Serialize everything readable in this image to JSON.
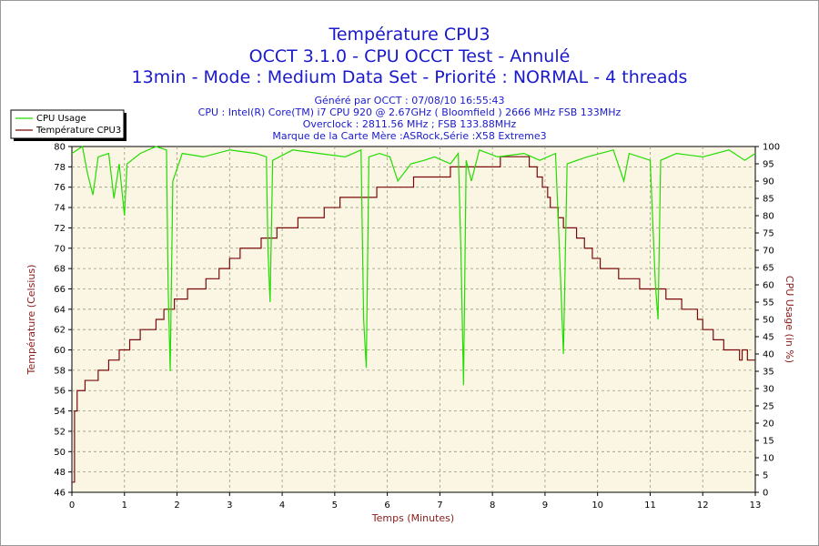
{
  "titles": {
    "line1": "Température CPU3",
    "line2": "OCCT 3.1.0 - CPU OCCT Test - Annulé",
    "line3": "13min - Mode : Medium Data Set - Priorité : NORMAL - 4 threads"
  },
  "info": {
    "generated": "Généré par OCCT : 07/08/10 16:55:43",
    "cpu": "CPU : Intel(R) Core(TM) i7 CPU 920 @ 2.67GHz ( Bloomfield ) 2666 MHz FSB 133MHz",
    "overclock": "Overclock : 2811.56 MHz ; FSB 133.88MHz",
    "board": "Marque de la Carte Mère :ASRock,Série :X58 Extreme3"
  },
  "colors": {
    "plot_bg": "#fbf5e4",
    "cpu_usage": "#22dd00",
    "temperature": "#7a0a0a",
    "grid": "#9a9a7a",
    "title": "#1a1acc"
  },
  "chart_data": {
    "type": "line",
    "xlabel": "Temps (Minutes)",
    "ylabel": "Température (Celsius)",
    "y2label": "CPU Usage (in %)",
    "xlim": [
      0,
      13
    ],
    "ylim": [
      46,
      80
    ],
    "y2lim": [
      0,
      100
    ],
    "x_ticks": [
      0,
      1,
      2,
      3,
      4,
      5,
      6,
      7,
      8,
      9,
      10,
      11,
      12,
      13
    ],
    "y_ticks": [
      46,
      48,
      50,
      52,
      54,
      56,
      58,
      60,
      62,
      64,
      66,
      68,
      70,
      72,
      74,
      76,
      78,
      80
    ],
    "y2_ticks": [
      0,
      5,
      10,
      15,
      20,
      25,
      30,
      35,
      40,
      45,
      50,
      55,
      60,
      65,
      70,
      75,
      80,
      85,
      90,
      95,
      100
    ],
    "legend": [
      "CPU Usage",
      "Température CPU3"
    ],
    "legend_position": "top-left",
    "grid": true,
    "series": [
      {
        "name": "Température CPU3",
        "axis": "left",
        "steps": [
          [
            0,
            47
          ],
          [
            0.05,
            54
          ],
          [
            0.1,
            56
          ],
          [
            0.25,
            57
          ],
          [
            0.5,
            58
          ],
          [
            0.7,
            59
          ],
          [
            0.85,
            59
          ],
          [
            0.9,
            60
          ],
          [
            1.1,
            61
          ],
          [
            1.3,
            62
          ],
          [
            1.6,
            63
          ],
          [
            1.75,
            64
          ],
          [
            1.95,
            65
          ],
          [
            2.2,
            66
          ],
          [
            2.55,
            67
          ],
          [
            2.8,
            68
          ],
          [
            3.0,
            69
          ],
          [
            3.2,
            70
          ],
          [
            3.6,
            71
          ],
          [
            3.9,
            72
          ],
          [
            4.3,
            73
          ],
          [
            4.8,
            74
          ],
          [
            5.1,
            75
          ],
          [
            5.6,
            75
          ],
          [
            5.8,
            76
          ],
          [
            6.2,
            76
          ],
          [
            6.5,
            77
          ],
          [
            6.9,
            77
          ],
          [
            7.2,
            78
          ],
          [
            7.5,
            78
          ],
          [
            7.8,
            78
          ],
          [
            8.15,
            79
          ],
          [
            8.7,
            78
          ],
          [
            8.85,
            77
          ],
          [
            8.95,
            76
          ],
          [
            9.05,
            75
          ],
          [
            9.1,
            74
          ],
          [
            9.25,
            73
          ],
          [
            9.35,
            72
          ],
          [
            9.6,
            71
          ],
          [
            9.75,
            70
          ],
          [
            9.9,
            69
          ],
          [
            10.05,
            68
          ],
          [
            10.4,
            67
          ],
          [
            10.8,
            66
          ],
          [
            11.3,
            65
          ],
          [
            11.6,
            64
          ],
          [
            11.9,
            63
          ],
          [
            12.0,
            62
          ],
          [
            12.2,
            61
          ],
          [
            12.4,
            60
          ],
          [
            12.7,
            59
          ],
          [
            12.75,
            60
          ],
          [
            12.85,
            59
          ]
        ]
      },
      {
        "name": "CPU Usage",
        "axis": "right",
        "points": [
          [
            0,
            98
          ],
          [
            0.2,
            100
          ],
          [
            0.3,
            92
          ],
          [
            0.4,
            86
          ],
          [
            0.5,
            97
          ],
          [
            0.7,
            98
          ],
          [
            0.8,
            85
          ],
          [
            0.9,
            95
          ],
          [
            1.0,
            80
          ],
          [
            1.05,
            95
          ],
          [
            1.3,
            98
          ],
          [
            1.6,
            100
          ],
          [
            1.8,
            99
          ],
          [
            1.83,
            60
          ],
          [
            1.87,
            35
          ],
          [
            1.92,
            90
          ],
          [
            2.1,
            98
          ],
          [
            2.5,
            97
          ],
          [
            3.0,
            99
          ],
          [
            3.5,
            98
          ],
          [
            3.7,
            97
          ],
          [
            3.73,
            70
          ],
          [
            3.77,
            55
          ],
          [
            3.82,
            96
          ],
          [
            4.2,
            99
          ],
          [
            4.7,
            98
          ],
          [
            5.2,
            97
          ],
          [
            5.5,
            99
          ],
          [
            5.55,
            50
          ],
          [
            5.6,
            36
          ],
          [
            5.65,
            97
          ],
          [
            5.85,
            98
          ],
          [
            6.05,
            97
          ],
          [
            6.2,
            90
          ],
          [
            6.45,
            95
          ],
          [
            6.7,
            96
          ],
          [
            6.9,
            97
          ],
          [
            7.2,
            95
          ],
          [
            7.35,
            98
          ],
          [
            7.4,
            70
          ],
          [
            7.45,
            31
          ],
          [
            7.5,
            96
          ],
          [
            7.6,
            90
          ],
          [
            7.75,
            99
          ],
          [
            8.1,
            97
          ],
          [
            8.6,
            98
          ],
          [
            8.9,
            96
          ],
          [
            9.2,
            98
          ],
          [
            9.3,
            60
          ],
          [
            9.35,
            40
          ],
          [
            9.42,
            95
          ],
          [
            9.8,
            97
          ],
          [
            10.3,
            99
          ],
          [
            10.5,
            90
          ],
          [
            10.6,
            98
          ],
          [
            11.0,
            96
          ],
          [
            11.1,
            60
          ],
          [
            11.15,
            50
          ],
          [
            11.2,
            96
          ],
          [
            11.5,
            98
          ],
          [
            12.0,
            97
          ],
          [
            12.5,
            99
          ],
          [
            12.8,
            96
          ],
          [
            13,
            98
          ]
        ]
      }
    ]
  }
}
